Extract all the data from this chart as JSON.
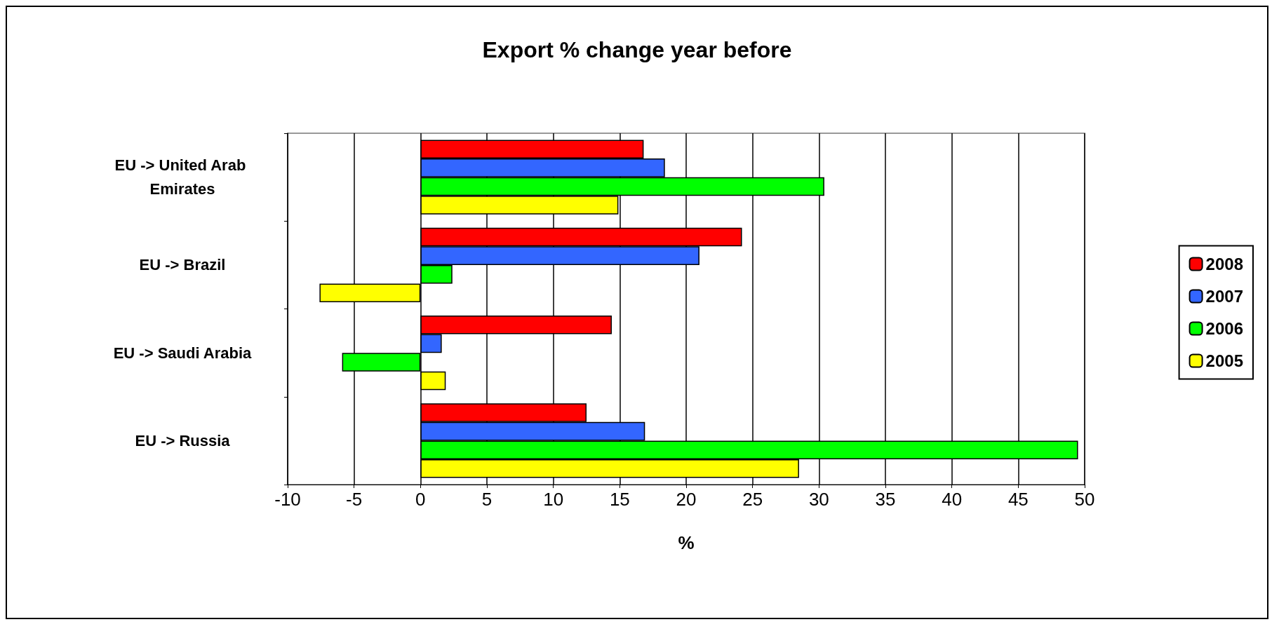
{
  "chart_data": {
    "type": "bar",
    "orientation": "horizontal",
    "title": "Export % change year before",
    "xlabel": "%",
    "categories": [
      "EU -> United Arab Emirates",
      "EU -> Brazil",
      "EU -> Saudi Arabia",
      "EU -> Russia"
    ],
    "series": [
      {
        "name": "2008",
        "color": "#ff0000",
        "values": [
          16.8,
          24.2,
          14.4,
          12.5
        ]
      },
      {
        "name": "2007",
        "color": "#3366ff",
        "values": [
          18.4,
          21.0,
          1.6,
          16.9
        ]
      },
      {
        "name": "2006",
        "color": "#00ff00",
        "values": [
          30.4,
          2.4,
          -5.9,
          49.5
        ]
      },
      {
        "name": "2005",
        "color": "#ffff00",
        "values": [
          14.9,
          -7.6,
          1.9,
          28.5
        ]
      }
    ],
    "xlim": [
      -10,
      50
    ],
    "xticks": [
      -10,
      -5,
      0,
      5,
      10,
      15,
      20,
      25,
      30,
      35,
      40,
      45,
      50
    ],
    "grid": "x",
    "legend": "right"
  }
}
